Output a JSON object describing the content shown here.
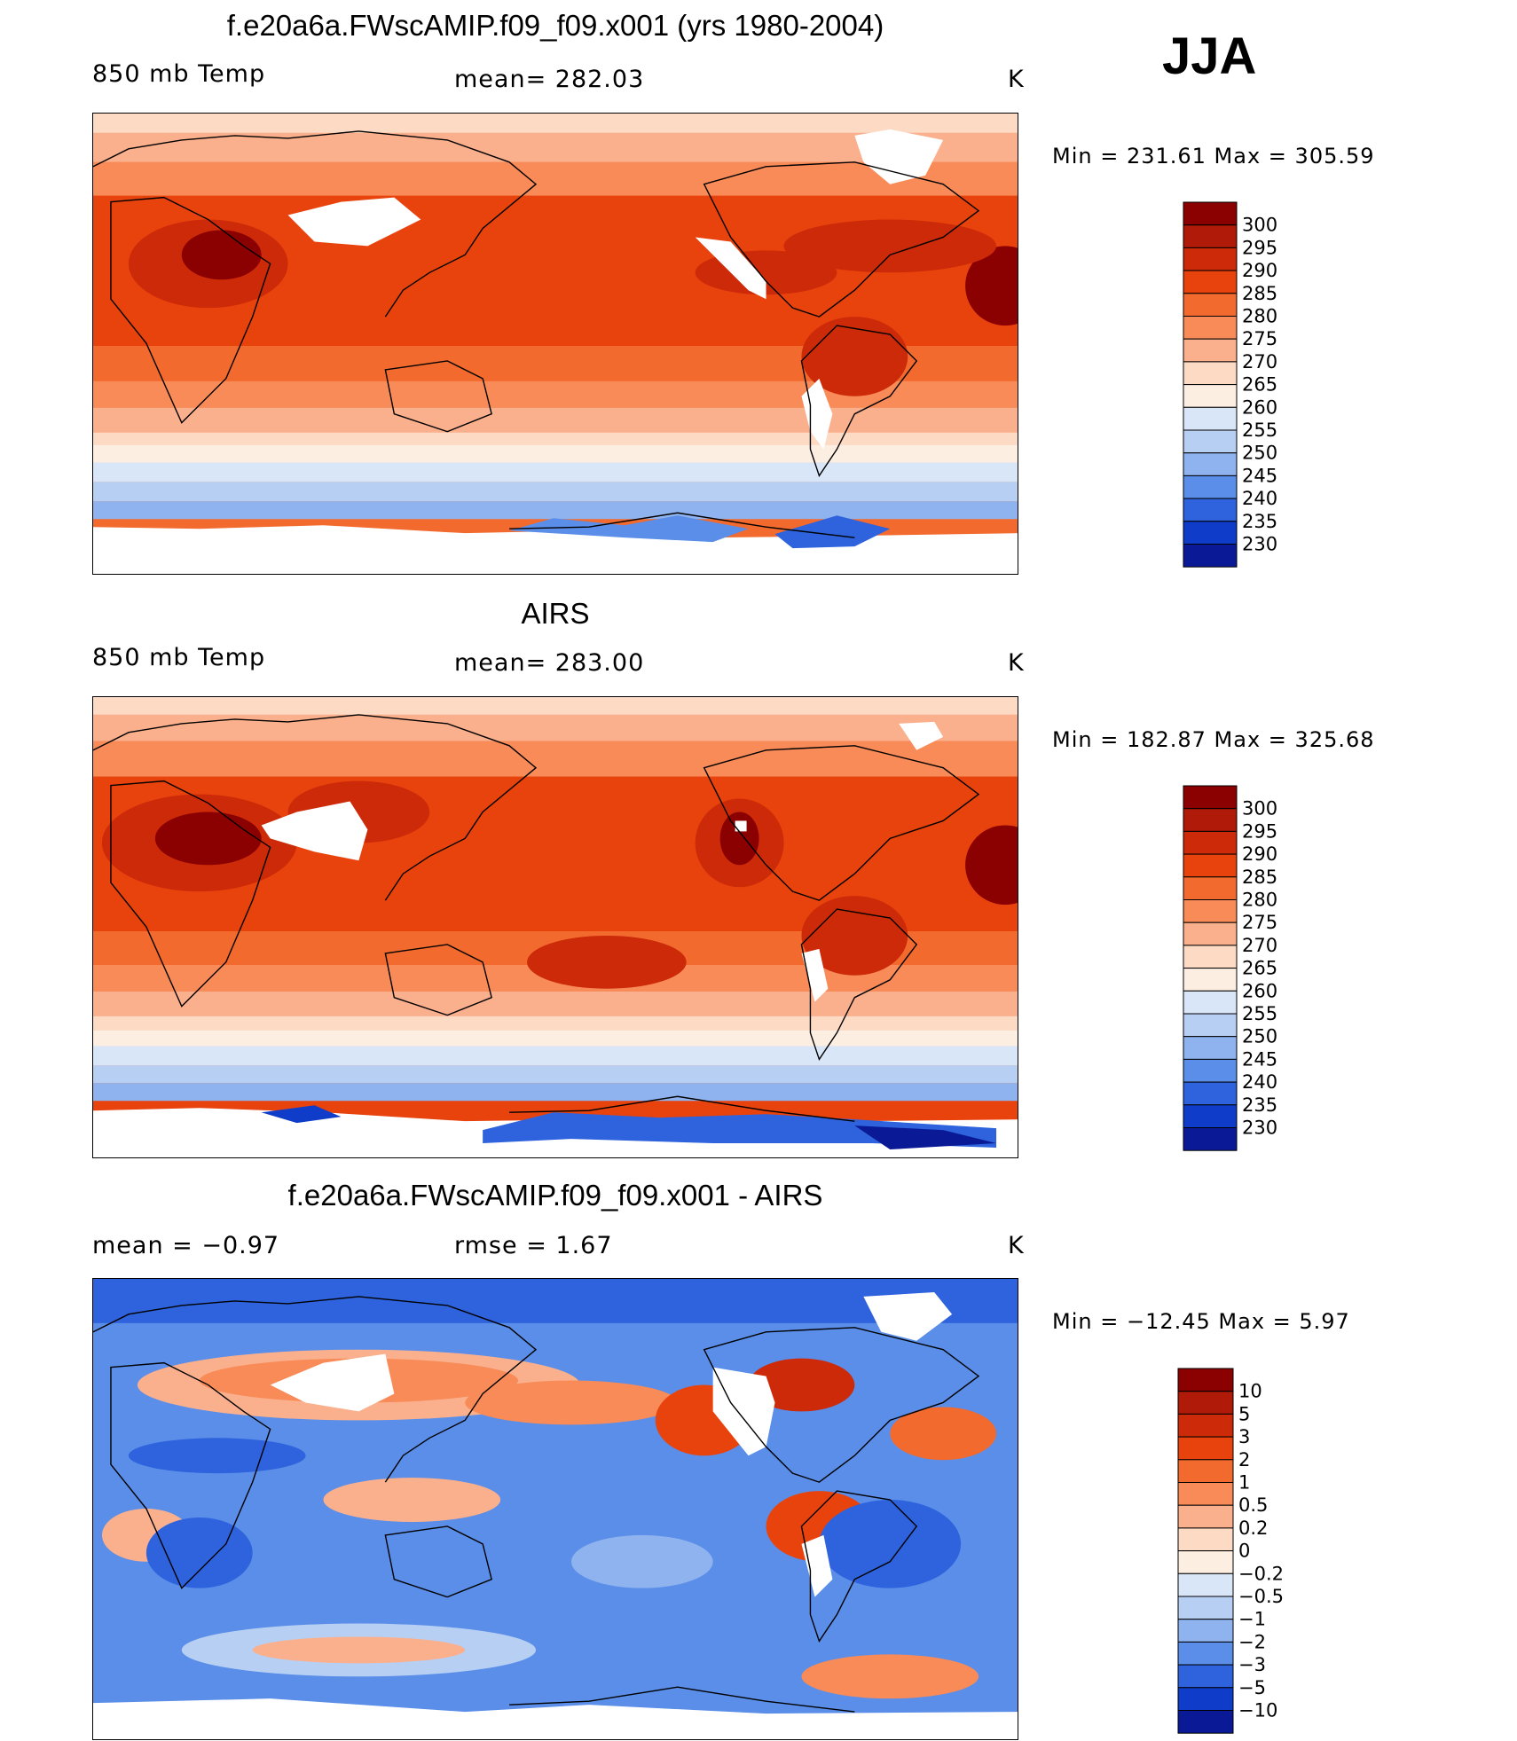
{
  "season": "JJA",
  "panels": [
    {
      "title": "f.e20a6a.FWscAMIP.f09_f09.x001 (yrs 1980-2004)",
      "left_label": "850 mb Temp",
      "center_label": "mean= 282.03",
      "units": "K",
      "minmax": "Min = 231.61 Max = 305.59",
      "colorbar": {
        "levels": [
          "300",
          "295",
          "290",
          "285",
          "280",
          "275",
          "270",
          "265",
          "260",
          "255",
          "250",
          "245",
          "240",
          "235",
          "230"
        ],
        "colors": [
          "#8b0000",
          "#b01a08",
          "#cc2a08",
          "#e8420d",
          "#f26a2e",
          "#f88b58",
          "#fbb08d",
          "#fddac4",
          "#fdeee2",
          "#d9e6f7",
          "#b7cff3",
          "#8fb3ee",
          "#5a8ee8",
          "#2e63dd",
          "#0f3cc8",
          "#0a1a96"
        ]
      }
    },
    {
      "title": "AIRS",
      "left_label": "850 mb Temp",
      "center_label": "mean= 283.00",
      "units": "K",
      "minmax": "Min = 182.87 Max = 325.68",
      "colorbar": {
        "levels": [
          "300",
          "295",
          "290",
          "285",
          "280",
          "275",
          "270",
          "265",
          "260",
          "255",
          "250",
          "245",
          "240",
          "235",
          "230"
        ],
        "colors": [
          "#8b0000",
          "#b01a08",
          "#cc2a08",
          "#e8420d",
          "#f26a2e",
          "#f88b58",
          "#fbb08d",
          "#fddac4",
          "#fdeee2",
          "#d9e6f7",
          "#b7cff3",
          "#8fb3ee",
          "#5a8ee8",
          "#2e63dd",
          "#0f3cc8",
          "#0a1a96"
        ]
      }
    },
    {
      "title": "f.e20a6a.FWscAMIP.f09_f09.x001 - AIRS",
      "left_label": "mean = −0.97",
      "center_label": "rmse = 1.67",
      "units": "K",
      "minmax": "Min = −12.45 Max = 5.97",
      "colorbar": {
        "levels": [
          "10",
          "5",
          "3",
          "2",
          "1",
          "0.5",
          "0.2",
          "0",
          "−0.2",
          "−0.5",
          "−1",
          "−2",
          "−3",
          "−5",
          "−10"
        ],
        "colors": [
          "#8b0000",
          "#b01a08",
          "#cc2a08",
          "#e8420d",
          "#f26a2e",
          "#f88b58",
          "#fbb08d",
          "#fddac4",
          "#fdeee2",
          "#d9e6f7",
          "#b7cff3",
          "#8fb3ee",
          "#5a8ee8",
          "#2e63dd",
          "#0f3cc8",
          "#0a1a96"
        ]
      }
    }
  ]
}
